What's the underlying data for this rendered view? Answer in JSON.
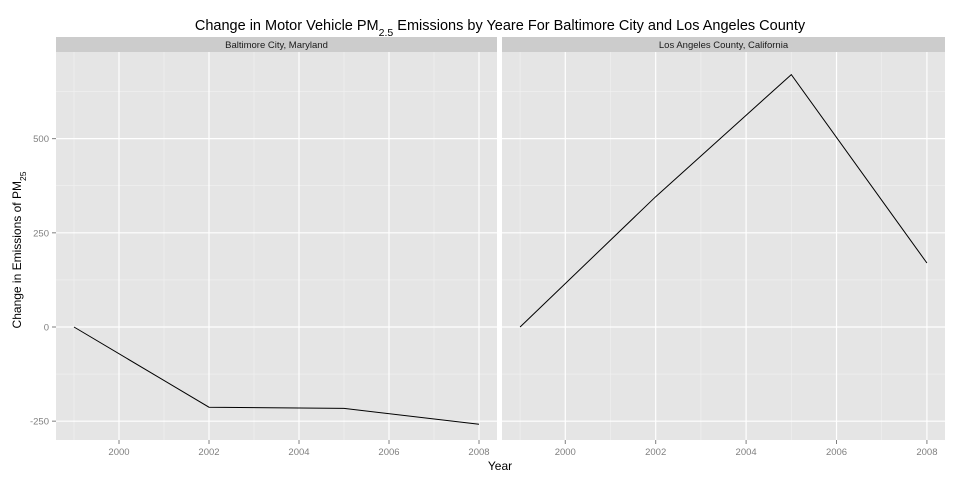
{
  "chart_data": {
    "type": "line",
    "title": {
      "prefix": "Change in Motor Vehicle PM",
      "subscript": "2.5",
      "suffix": " Emissions by Yeare For Baltimore City and Los Angeles County"
    },
    "xlabel": "Year",
    "ylabel": {
      "prefix": "Change in Emissions of PM",
      "subscript": "25"
    },
    "x_ticks": [
      2000,
      2002,
      2004,
      2006,
      2008
    ],
    "y_ticks": [
      -250,
      0,
      250,
      500
    ],
    "xlim": [
      1998.6,
      2008.4
    ],
    "ylim": [
      -300,
      730
    ],
    "grid": true,
    "facets": [
      {
        "label": "Baltimore City, Maryland",
        "x": [
          1999,
          2002,
          2005,
          2008
        ],
        "y": [
          0,
          -213,
          -216,
          -258
        ]
      },
      {
        "label": "Los Angeles County, California",
        "x": [
          1999,
          2002,
          2005,
          2008
        ],
        "y": [
          0,
          346,
          670,
          170
        ]
      }
    ],
    "colors": {
      "panel_bg": "#e5e5e5",
      "strip_bg": "#cccccc",
      "grid_major": "#ffffff",
      "grid_minor": "#f2f2f2",
      "line": "#000000"
    }
  }
}
